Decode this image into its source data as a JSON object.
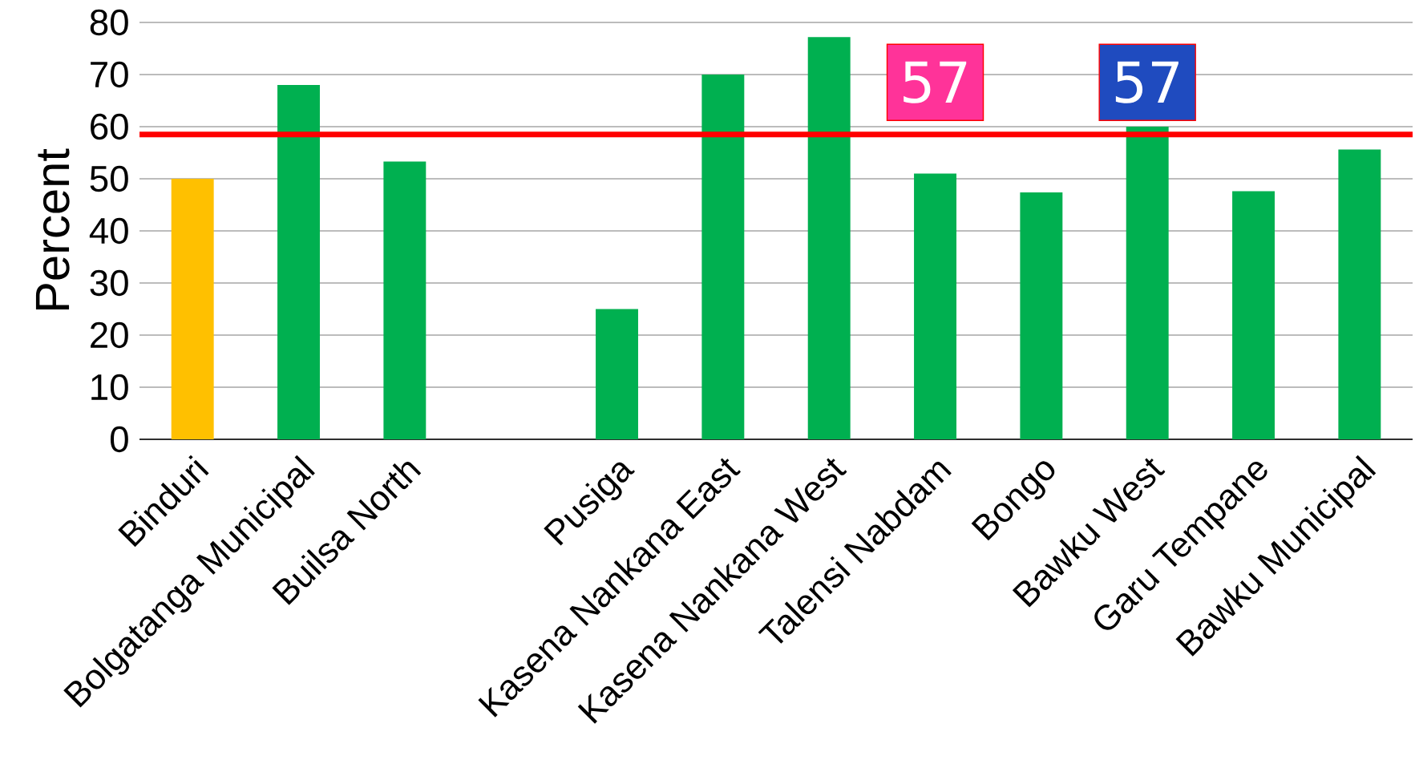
{
  "chart_data": {
    "type": "bar",
    "ylabel": "Percent",
    "categories": [
      "Binduri",
      "Bolgatanga Municipal",
      "Builsa North",
      null,
      "Pusiga",
      "Kasena Nankana East",
      "Kasena Nankana West",
      "Talensi Nabdam",
      "Bongo",
      "Bawku West",
      "Garu Tempane",
      "Bawku Municipal"
    ],
    "values": [
      50,
      68,
      53.3,
      null,
      25,
      70,
      77.2,
      51,
      47.4,
      60,
      47.6,
      55.6
    ],
    "colors": [
      "#ffc000",
      "#00b050",
      "#00b050",
      "#00b050",
      "#00b050",
      "#00b050",
      "#00b050",
      "#00b050",
      "#00b050",
      "#00b050",
      "#00b050",
      "#00b050"
    ],
    "ylim": [
      0,
      80
    ],
    "yticks": [
      0,
      10,
      20,
      30,
      40,
      50,
      60,
      70,
      80
    ],
    "grid": "y",
    "ref_lines": [
      {
        "axis": "y",
        "value": 58.5,
        "color": "#ff0000"
      }
    ],
    "annotations": [
      "57",
      "57"
    ]
  }
}
